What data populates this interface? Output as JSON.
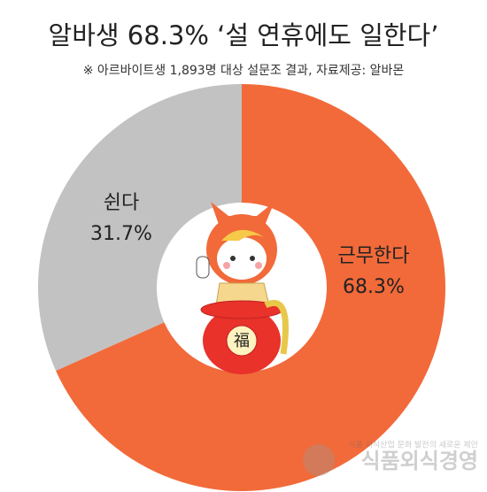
{
  "chart_data": {
    "type": "donut",
    "title": "알바생 68.3% ‘설 연휴에도 일한다’",
    "subtitle": "※ 아르바이트생 1,893명 대상 설문조 결과,  자료제공: 알바몬",
    "categories": [
      "근무한다",
      "쉰다"
    ],
    "values": [
      68.3,
      31.7
    ],
    "value_labels": [
      "68.3%",
      "31.7%"
    ],
    "colors": [
      "#f26a3a",
      "#c2c2c2"
    ]
  },
  "illustration": {
    "bag_text": "福"
  },
  "watermark": {
    "tagline": "식품 외식산업 문화 발전의 새로운 제안",
    "name": "식품외식경영"
  }
}
